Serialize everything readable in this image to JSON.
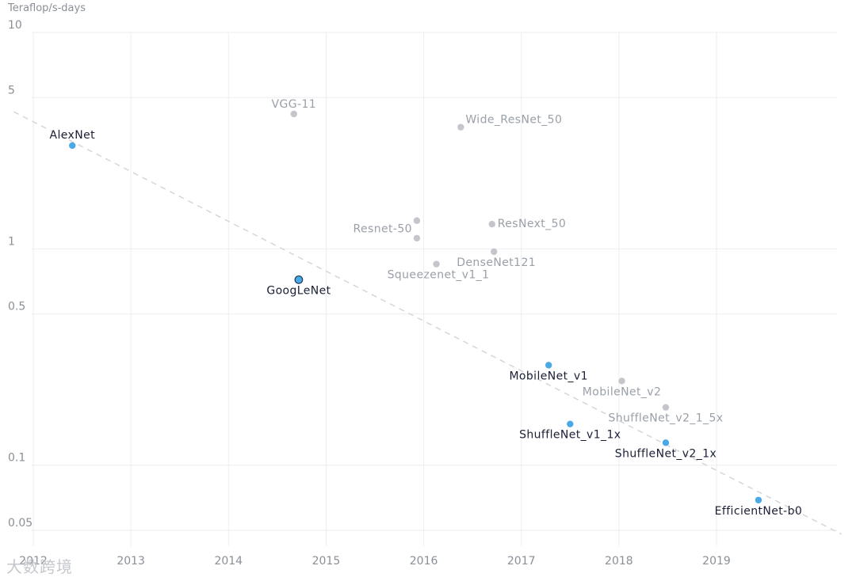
{
  "chart_data": {
    "type": "scatter",
    "title": "",
    "ylabel": "Teraflop/s-days",
    "xlabel": "",
    "yscale": "log",
    "ylim": [
      0.045,
      10
    ],
    "xlim": [
      2011.8,
      2020.3
    ],
    "yticks": [
      10,
      5,
      1,
      0.5,
      0.1,
      0.05
    ],
    "ytick_labels": [
      "10",
      "5",
      "1",
      "0.5",
      "0.1",
      "0.05"
    ],
    "xticks": [
      2012,
      2013,
      2014,
      2015,
      2016,
      2017,
      2018,
      2019
    ],
    "xtick_labels": [
      "2012",
      "2013",
      "2014",
      "2015",
      "2016",
      "2017",
      "2018",
      "2019"
    ],
    "trend_line": {
      "x": [
        2011.8,
        2020.28
      ],
      "y": [
        4.3,
        0.048
      ]
    },
    "points": [
      {
        "name": "AlexNet",
        "x": 2012.4,
        "y": 3.0,
        "highlight": true,
        "label_anchor": "middle",
        "label_dx": 0,
        "label_dy": -9
      },
      {
        "name": "VGG-11",
        "x": 2014.67,
        "y": 4.2,
        "highlight": false,
        "label_anchor": "middle",
        "label_dx": 0,
        "label_dy": -8
      },
      {
        "name": "GoogLeNet",
        "x": 2014.72,
        "y": 0.72,
        "highlight": true,
        "outlined": true,
        "label_anchor": "middle",
        "label_dx": 0,
        "label_dy": 18
      },
      {
        "name": "Wide_ResNet_50",
        "x": 2016.38,
        "y": 3.65,
        "highlight": false,
        "label_anchor": "start",
        "label_dx": 6,
        "label_dy": -5
      },
      {
        "name": "Resnet-50",
        "x": 2015.93,
        "y": 1.35,
        "highlight": false,
        "label_anchor": "end",
        "label_dx": -6,
        "label_dy": 15
      },
      {
        "name": "",
        "x": 2015.93,
        "y": 1.12,
        "highlight": false
      },
      {
        "name": "ResNext_50",
        "x": 2016.7,
        "y": 1.3,
        "highlight": false,
        "label_anchor": "start",
        "label_dx": 7,
        "label_dy": 4
      },
      {
        "name": "DenseNet121",
        "x": 2016.72,
        "y": 0.97,
        "highlight": false,
        "label_anchor": "start",
        "label_dx": -47,
        "label_dy": 18
      },
      {
        "name": "Squeezenet_v1_1",
        "x": 2016.13,
        "y": 0.85,
        "highlight": false,
        "label_anchor": "start",
        "label_dx": -62,
        "label_dy": 18
      },
      {
        "name": "MobileNet_v1",
        "x": 2017.28,
        "y": 0.29,
        "highlight": true,
        "label_anchor": "middle",
        "label_dx": 0,
        "label_dy": 18
      },
      {
        "name": "MobileNet_v2",
        "x": 2018.03,
        "y": 0.245,
        "highlight": false,
        "label_anchor": "middle",
        "label_dx": 0,
        "label_dy": 18
      },
      {
        "name": "ShuffleNet_v2_1_5x",
        "x": 2018.48,
        "y": 0.185,
        "highlight": false,
        "label_anchor": "middle",
        "label_dx": 0,
        "label_dy": 18
      },
      {
        "name": "ShuffleNet_v1_1x",
        "x": 2017.5,
        "y": 0.155,
        "highlight": true,
        "label_anchor": "middle",
        "label_dx": 0,
        "label_dy": 18
      },
      {
        "name": "ShuffleNet_v2_1x",
        "x": 2018.48,
        "y": 0.127,
        "highlight": true,
        "label_anchor": "middle",
        "label_dx": 0,
        "label_dy": 18
      },
      {
        "name": "EfficientNet-b0",
        "x": 2019.43,
        "y": 0.069,
        "highlight": true,
        "label_anchor": "middle",
        "label_dx": 0,
        "label_dy": 18
      }
    ],
    "colors": {
      "highlight": "#4aa8e6",
      "muted": "#c4c6cc",
      "highlight_label": "#1a1f36",
      "muted_label": "#9aa0a8",
      "grid": "#eceef1",
      "axis_text": "#8a8f98",
      "trend": "#d4d6da"
    }
  },
  "watermark": "大数跨境"
}
